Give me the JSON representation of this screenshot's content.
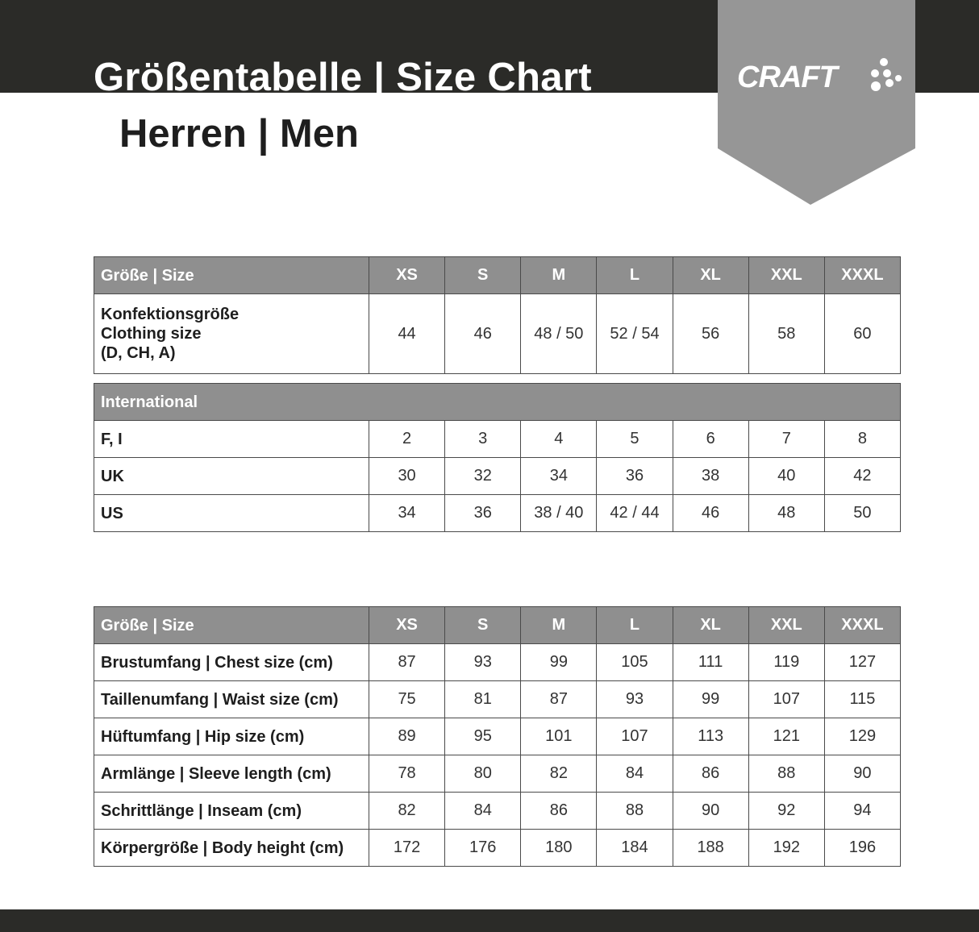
{
  "header": {
    "title": "Größentabelle | Size Chart",
    "subtitle": "Herren | Men",
    "logo_text": "CRAFT"
  },
  "colors": {
    "dark_bar": "#2b2b28",
    "header_fill": "#8f8f8f",
    "logo_shield": "#969696"
  },
  "table1": {
    "header": [
      "Größe | Size",
      "XS",
      "S",
      "M",
      "L",
      "XL",
      "XXL",
      "XXXL"
    ],
    "rows": [
      {
        "label": [
          "Konfektionsgröße",
          "Clothing size",
          "(D, CH, A)"
        ],
        "values": [
          "44",
          "46",
          "48 / 50",
          "52 / 54",
          "56",
          "58",
          "60"
        ]
      }
    ]
  },
  "table2": {
    "header": "International",
    "rows": [
      {
        "label": "F, I",
        "values": [
          "2",
          "3",
          "4",
          "5",
          "6",
          "7",
          "8"
        ]
      },
      {
        "label": "UK",
        "values": [
          "30",
          "32",
          "34",
          "36",
          "38",
          "40",
          "42"
        ]
      },
      {
        "label": "US",
        "values": [
          "34",
          "36",
          "38 / 40",
          "42 / 44",
          "46",
          "48",
          "50"
        ]
      }
    ]
  },
  "table3": {
    "header": [
      "Größe | Size",
      "XS",
      "S",
      "M",
      "L",
      "XL",
      "XXL",
      "XXXL"
    ],
    "rows": [
      {
        "label": "Brustumfang | Chest size (cm)",
        "values": [
          "87",
          "93",
          "99",
          "105",
          "111",
          "119",
          "127"
        ]
      },
      {
        "label": "Taillenumfang | Waist size (cm)",
        "values": [
          "75",
          "81",
          "87",
          "93",
          "99",
          "107",
          "115"
        ]
      },
      {
        "label": "Hüftumfang | Hip size (cm)",
        "values": [
          "89",
          "95",
          "101",
          "107",
          "113",
          "121",
          "129"
        ]
      },
      {
        "label": "Armlänge | Sleeve length (cm)",
        "values": [
          "78",
          "80",
          "82",
          "84",
          "86",
          "88",
          "90"
        ]
      },
      {
        "label": "Schrittlänge | Inseam (cm)",
        "values": [
          "82",
          "84",
          "86",
          "88",
          "90",
          "92",
          "94"
        ]
      },
      {
        "label": "Körpergröße | Body height (cm)",
        "values": [
          "172",
          "176",
          "180",
          "184",
          "188",
          "192",
          "196"
        ]
      }
    ]
  }
}
